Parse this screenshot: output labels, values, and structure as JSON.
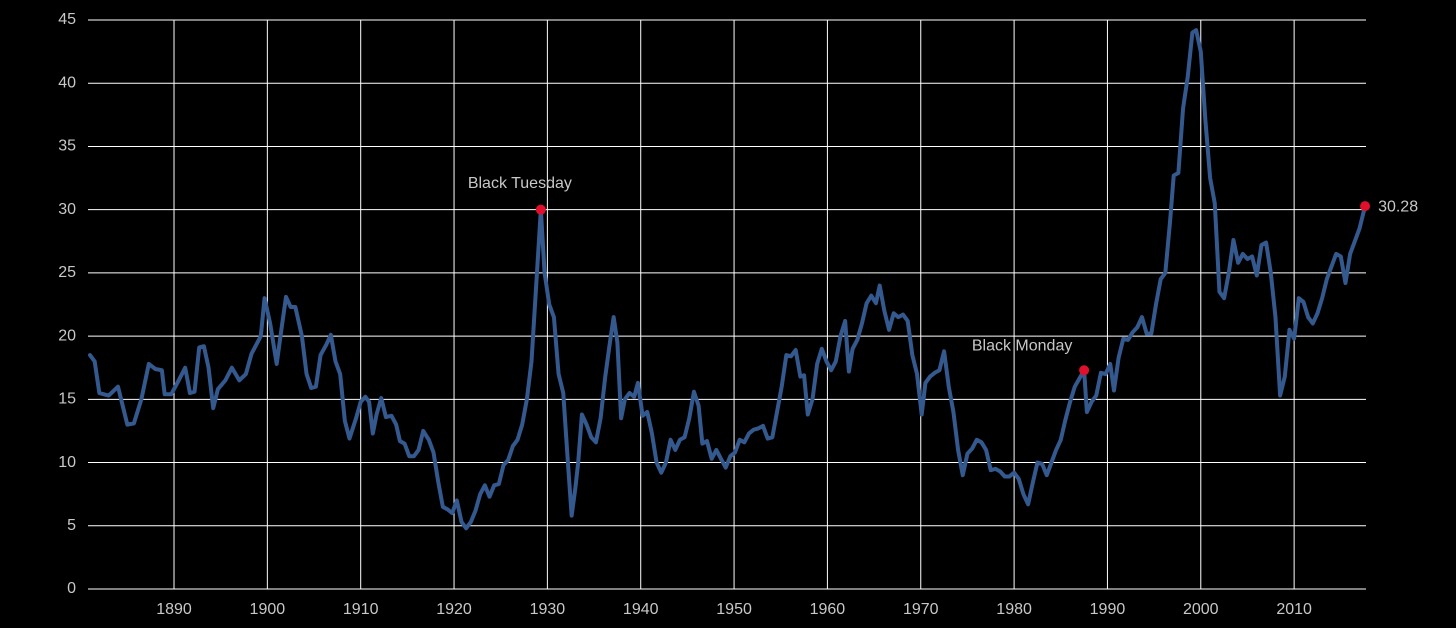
{
  "chart_data": {
    "type": "line",
    "x": [
      1881,
      1881.5,
      1882,
      1883,
      1884,
      1885,
      1885.7,
      1886.5,
      1887.3,
      1888,
      1888.7,
      1889,
      1889.7,
      1890.5,
      1891.2,
      1891.7,
      1892.2,
      1892.7,
      1893.2,
      1893.7,
      1894.2,
      1894.7,
      1895.5,
      1896.2,
      1897,
      1897.7,
      1898.3,
      1899.3,
      1899.7,
      1900.3,
      1901,
      1901.5,
      1902,
      1902.5,
      1903,
      1903.7,
      1904.2,
      1904.7,
      1905.2,
      1905.7,
      1906.3,
      1906.8,
      1907.3,
      1907.8,
      1908.3,
      1908.8,
      1909.5,
      1910,
      1910.5,
      1910.9,
      1911.3,
      1911.7,
      1912.2,
      1912.7,
      1913.3,
      1913.8,
      1914.2,
      1914.7,
      1915.2,
      1915.7,
      1916.2,
      1916.7,
      1917.3,
      1917.8,
      1918.3,
      1918.8,
      1919.3,
      1919.8,
      1920.3,
      1920.8,
      1921.3,
      1921.8,
      1922.3,
      1922.8,
      1923.3,
      1923.8,
      1924.3,
      1924.8,
      1925.3,
      1925.8,
      1926.3,
      1926.8,
      1927.3,
      1927.8,
      1928.3,
      1928.8,
      1929.3,
      1929.7,
      1930.2,
      1930.7,
      1931.2,
      1931.7,
      1932.2,
      1932.6,
      1933,
      1933.3,
      1933.7,
      1934.2,
      1934.7,
      1935.2,
      1935.7,
      1936.2,
      1936.7,
      1937.1,
      1937.5,
      1937.9,
      1938.3,
      1938.8,
      1939.3,
      1939.7,
      1940.2,
      1940.7,
      1941.2,
      1941.7,
      1942.2,
      1942.7,
      1943.2,
      1943.7,
      1944.2,
      1944.7,
      1945.2,
      1945.7,
      1946.2,
      1946.6,
      1947.1,
      1947.6,
      1948.1,
      1948.6,
      1949.1,
      1949.6,
      1950.1,
      1950.6,
      1951.1,
      1951.6,
      1952.1,
      1952.6,
      1953.1,
      1953.6,
      1954.1,
      1954.6,
      1955.1,
      1955.6,
      1956.1,
      1956.6,
      1957.1,
      1957.5,
      1957.9,
      1958.4,
      1958.9,
      1959.4,
      1959.9,
      1960.4,
      1960.9,
      1961.4,
      1961.9,
      1962.3,
      1962.7,
      1963.2,
      1963.7,
      1964.2,
      1964.7,
      1965.2,
      1965.6,
      1966.1,
      1966.6,
      1967.1,
      1967.6,
      1968.1,
      1968.6,
      1969.1,
      1969.6,
      1970.1,
      1970.5,
      1971,
      1971.5,
      1972,
      1972.5,
      1973,
      1973.5,
      1974,
      1974.5,
      1975,
      1975.5,
      1976,
      1976.5,
      1977,
      1977.5,
      1978,
      1978.5,
      1979,
      1979.5,
      1980,
      1980.5,
      1981,
      1981.5,
      1982,
      1982.5,
      1983,
      1983.5,
      1984,
      1984.5,
      1985,
      1985.5,
      1986,
      1986.5,
      1987.5,
      1987.8,
      1988.3,
      1988.8,
      1989.3,
      1989.8,
      1990.3,
      1990.7,
      1991.2,
      1991.7,
      1992.2,
      1992.7,
      1993.2,
      1993.7,
      1994.2,
      1994.7,
      1995.2,
      1995.7,
      1996.2,
      1996.7,
      1997.1,
      1997.6,
      1998.1,
      1998.6,
      1999.1,
      1999.5,
      2000,
      2000.5,
      2001,
      2001.5,
      2002,
      2002.5,
      2003,
      2003.5,
      2004,
      2004.5,
      2005,
      2005.5,
      2006,
      2006.5,
      2007,
      2007.5,
      2008,
      2008.5,
      2009,
      2009.5,
      2010,
      2010.5,
      2011,
      2011.5,
      2012,
      2012.5,
      2013,
      2013.5,
      2014,
      2014.5,
      2015,
      2015.5,
      2016,
      2016.5,
      2017,
      2017.6
    ],
    "series": [
      {
        "color": "#34598f",
        "values": [
          18.5,
          18,
          15.5,
          15.3,
          16,
          13,
          13.1,
          15,
          17.8,
          17.4,
          17.3,
          15.4,
          15.4,
          16.5,
          17.5,
          15.5,
          15.6,
          19.1,
          19.2,
          17.5,
          14.3,
          15.8,
          16.5,
          17.5,
          16.5,
          17,
          18.6,
          20,
          23,
          21,
          17.8,
          20.5,
          23.1,
          22.3,
          22.3,
          20,
          17,
          15.9,
          16,
          18.5,
          19.3,
          20.1,
          18,
          17,
          13.3,
          11.9,
          13.5,
          14.8,
          15.2,
          14.8,
          12.3,
          13.8,
          15.1,
          13.6,
          13.7,
          13,
          11.7,
          11.5,
          10.5,
          10.5,
          11,
          12.5,
          11.8,
          10.8,
          8.5,
          6.5,
          6.3,
          6,
          7,
          5.3,
          4.8,
          5.3,
          6.2,
          7.5,
          8.2,
          7.3,
          8.2,
          8.3,
          9.8,
          10.2,
          11.3,
          11.8,
          13,
          15,
          18,
          24,
          30,
          25,
          22.5,
          21.5,
          17,
          15.5,
          10,
          5.8,
          8,
          10,
          13.8,
          13,
          12,
          11.6,
          13.5,
          16.8,
          19.5,
          21.5,
          19.5,
          13.5,
          15,
          15.5,
          15.2,
          16.3,
          13.7,
          14,
          12.3,
          10,
          9.2,
          10,
          11.8,
          11,
          11.8,
          12,
          13.5,
          15.6,
          14.5,
          11.5,
          11.7,
          10.3,
          11,
          10.3,
          9.6,
          10.5,
          10.8,
          11.8,
          11.6,
          12.3,
          12.6,
          12.7,
          12.9,
          11.9,
          12,
          14,
          16,
          18.5,
          18.4,
          18.9,
          16.8,
          16.9,
          13.8,
          15,
          17.8,
          19,
          18,
          17.3,
          18,
          20,
          21.2,
          17.2,
          19,
          19.7,
          21,
          22.6,
          23.2,
          22.6,
          24,
          22,
          20.5,
          21.8,
          21.5,
          21.7,
          21.2,
          18.5,
          17,
          13.8,
          16.3,
          16.8,
          17.1,
          17.3,
          18.8,
          16,
          14,
          11,
          9,
          10.7,
          11.1,
          11.8,
          11.6,
          11,
          9.4,
          9.5,
          9.3,
          8.9,
          8.9,
          9.2,
          8.7,
          7.5,
          6.7,
          8.4,
          10,
          9.9,
          9,
          10,
          11,
          11.8,
          13.4,
          14.8,
          16,
          17.3,
          14,
          14.8,
          15.3,
          17.1,
          17,
          17.8,
          15.7,
          18.3,
          19.8,
          19.7,
          20.3,
          20.7,
          21.5,
          20.2,
          20.2,
          22.5,
          24.5,
          25,
          29,
          32.7,
          32.9,
          38,
          40.5,
          44,
          44.2,
          42.5,
          37,
          32.5,
          30.5,
          23.5,
          23,
          25,
          27.6,
          25.8,
          26.5,
          26.1,
          26.3,
          24.8,
          27.2,
          27.4,
          25,
          21.5,
          15.3,
          16.8,
          20.5,
          19.8,
          23,
          22.7,
          21.5,
          21,
          21.8,
          23,
          24.5,
          25.5,
          26.5,
          26.3,
          24.2,
          26.5,
          27.5,
          28.5,
          30.28
        ]
      }
    ],
    "annotations": [
      {
        "label": "Black Tuesday",
        "x": 1929.3,
        "y": 30,
        "color": "#e0102c"
      },
      {
        "label": "Black Monday",
        "x": 1987.5,
        "y": 17.3,
        "color": "#e0102c"
      },
      {
        "label": "30.28",
        "x": 2017.6,
        "y": 30.28,
        "color": "#e0102c"
      }
    ],
    "xlim": [
      1881,
      2017.7
    ],
    "ylim": [
      0,
      45
    ],
    "xticks": [
      1890,
      1900,
      1910,
      1920,
      1930,
      1940,
      1950,
      1960,
      1970,
      1980,
      1990,
      2000,
      2010
    ],
    "yticks": [
      0,
      5,
      10,
      15,
      20,
      25,
      30,
      35,
      40,
      45
    ],
    "grid": true
  }
}
